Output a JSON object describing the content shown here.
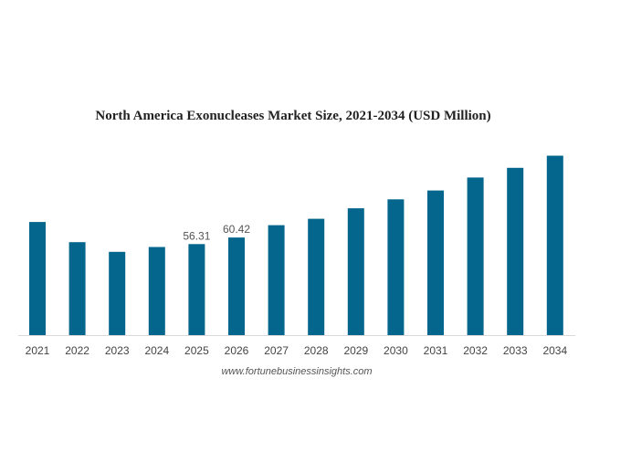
{
  "chart_data": {
    "type": "bar",
    "title": "North America Exonucleases Market Size, 2021-2034 (USD Million)",
    "categories": [
      "2021",
      "2022",
      "2023",
      "2024",
      "2025",
      "2026",
      "2027",
      "2028",
      "2029",
      "2030",
      "2031",
      "2032",
      "2033",
      "2034"
    ],
    "values": [
      70.0,
      57.5,
      51.5,
      54.5,
      56.31,
      60.42,
      68.0,
      72.0,
      78.5,
      84.0,
      89.5,
      97.5,
      103.5,
      111.0
    ],
    "data_labels": {
      "4": "56.31",
      "5": "60.42"
    },
    "ylim": [
      0,
      120
    ],
    "xlabel": "",
    "ylabel": "",
    "grid": false,
    "bar_color": "#05668d"
  },
  "source": "www.fortunebusinessinsights.com"
}
